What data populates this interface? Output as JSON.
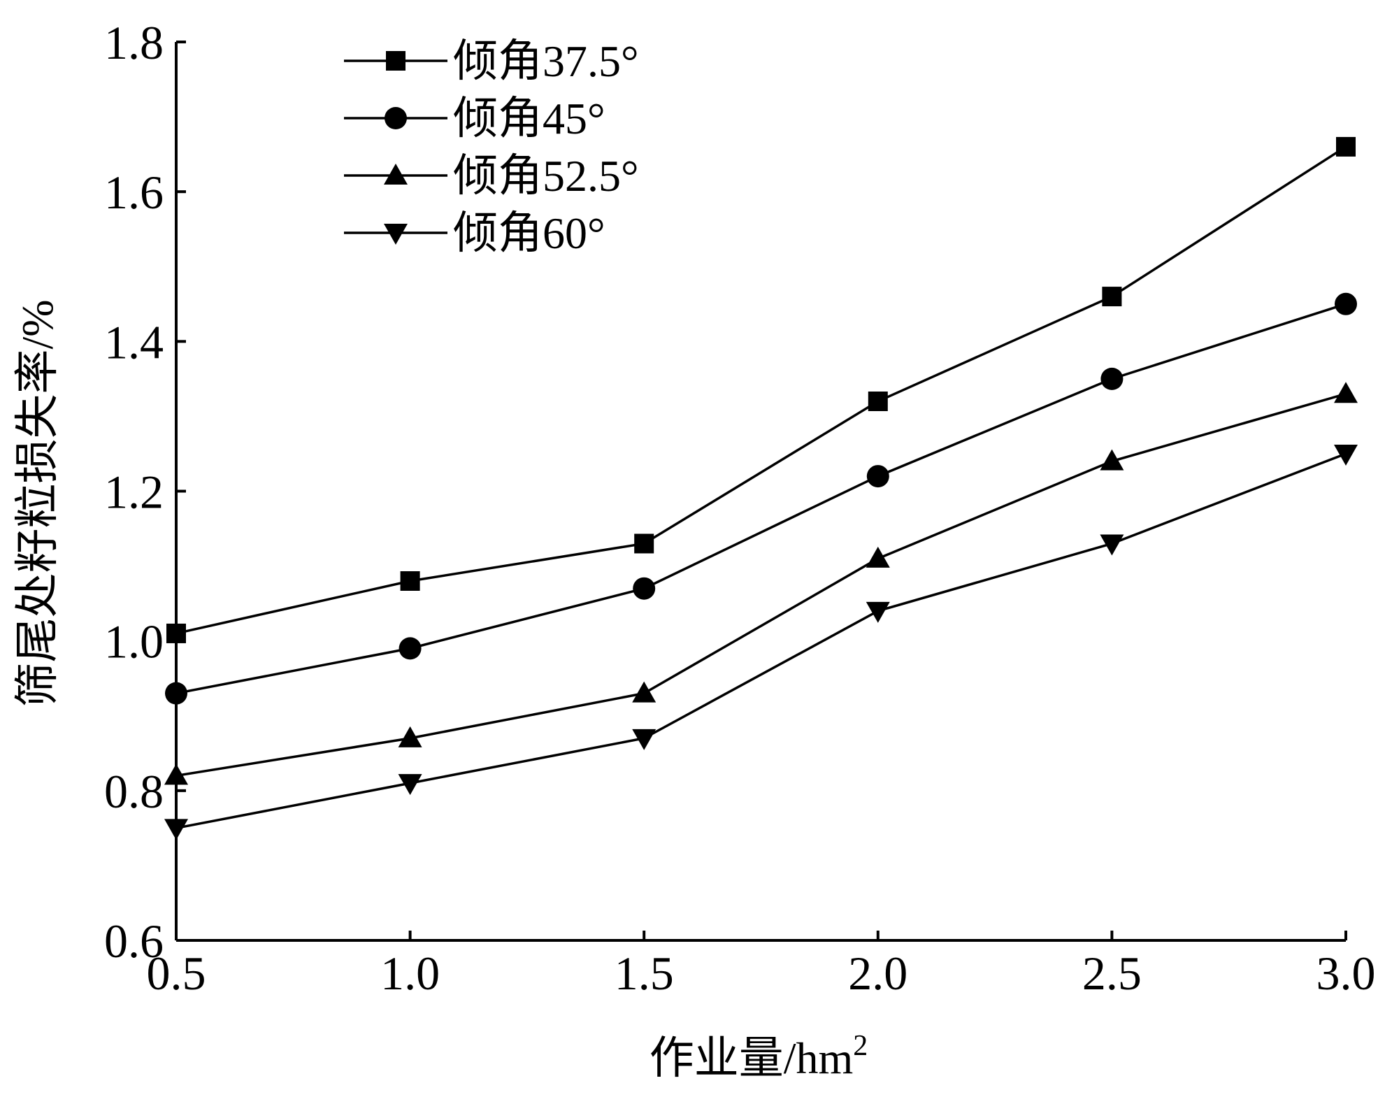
{
  "chart_data": {
    "type": "line",
    "title": "",
    "xlabel": "作业量/hm",
    "xlabel_superscript": "2",
    "ylabel": "筛尾处籽粒损失率/%",
    "x": [
      0.5,
      1.0,
      1.5,
      2.0,
      2.5,
      3.0
    ],
    "x_tick_labels": [
      "0.5",
      "1.0",
      "1.5",
      "2.0",
      "2.5",
      "3.0"
    ],
    "y_ticks": [
      0.6,
      0.8,
      1.0,
      1.2,
      1.4,
      1.6,
      1.8
    ],
    "y_tick_labels": [
      "0.6",
      "0.8",
      "1.0",
      "1.2",
      "1.4",
      "1.6",
      "1.8"
    ],
    "xlim": [
      0.5,
      3.0
    ],
    "ylim": [
      0.6,
      1.8
    ],
    "grid": false,
    "legend_position": "top-left",
    "series": [
      {
        "name": "倾角37.5°",
        "marker": "square",
        "values": [
          1.01,
          1.08,
          1.13,
          1.32,
          1.46,
          1.66
        ]
      },
      {
        "name": "倾角45°",
        "marker": "circle",
        "values": [
          0.93,
          0.99,
          1.07,
          1.22,
          1.35,
          1.45
        ]
      },
      {
        "name": "倾角52.5°",
        "marker": "triangle-up",
        "values": [
          0.82,
          0.87,
          0.93,
          1.11,
          1.24,
          1.33
        ]
      },
      {
        "name": "倾角60°",
        "marker": "triangle-down",
        "values": [
          0.75,
          0.81,
          0.87,
          1.04,
          1.13,
          1.25
        ]
      }
    ],
    "colors": {
      "line": "#000000",
      "marker": "#000000",
      "background": "#ffffff"
    }
  }
}
